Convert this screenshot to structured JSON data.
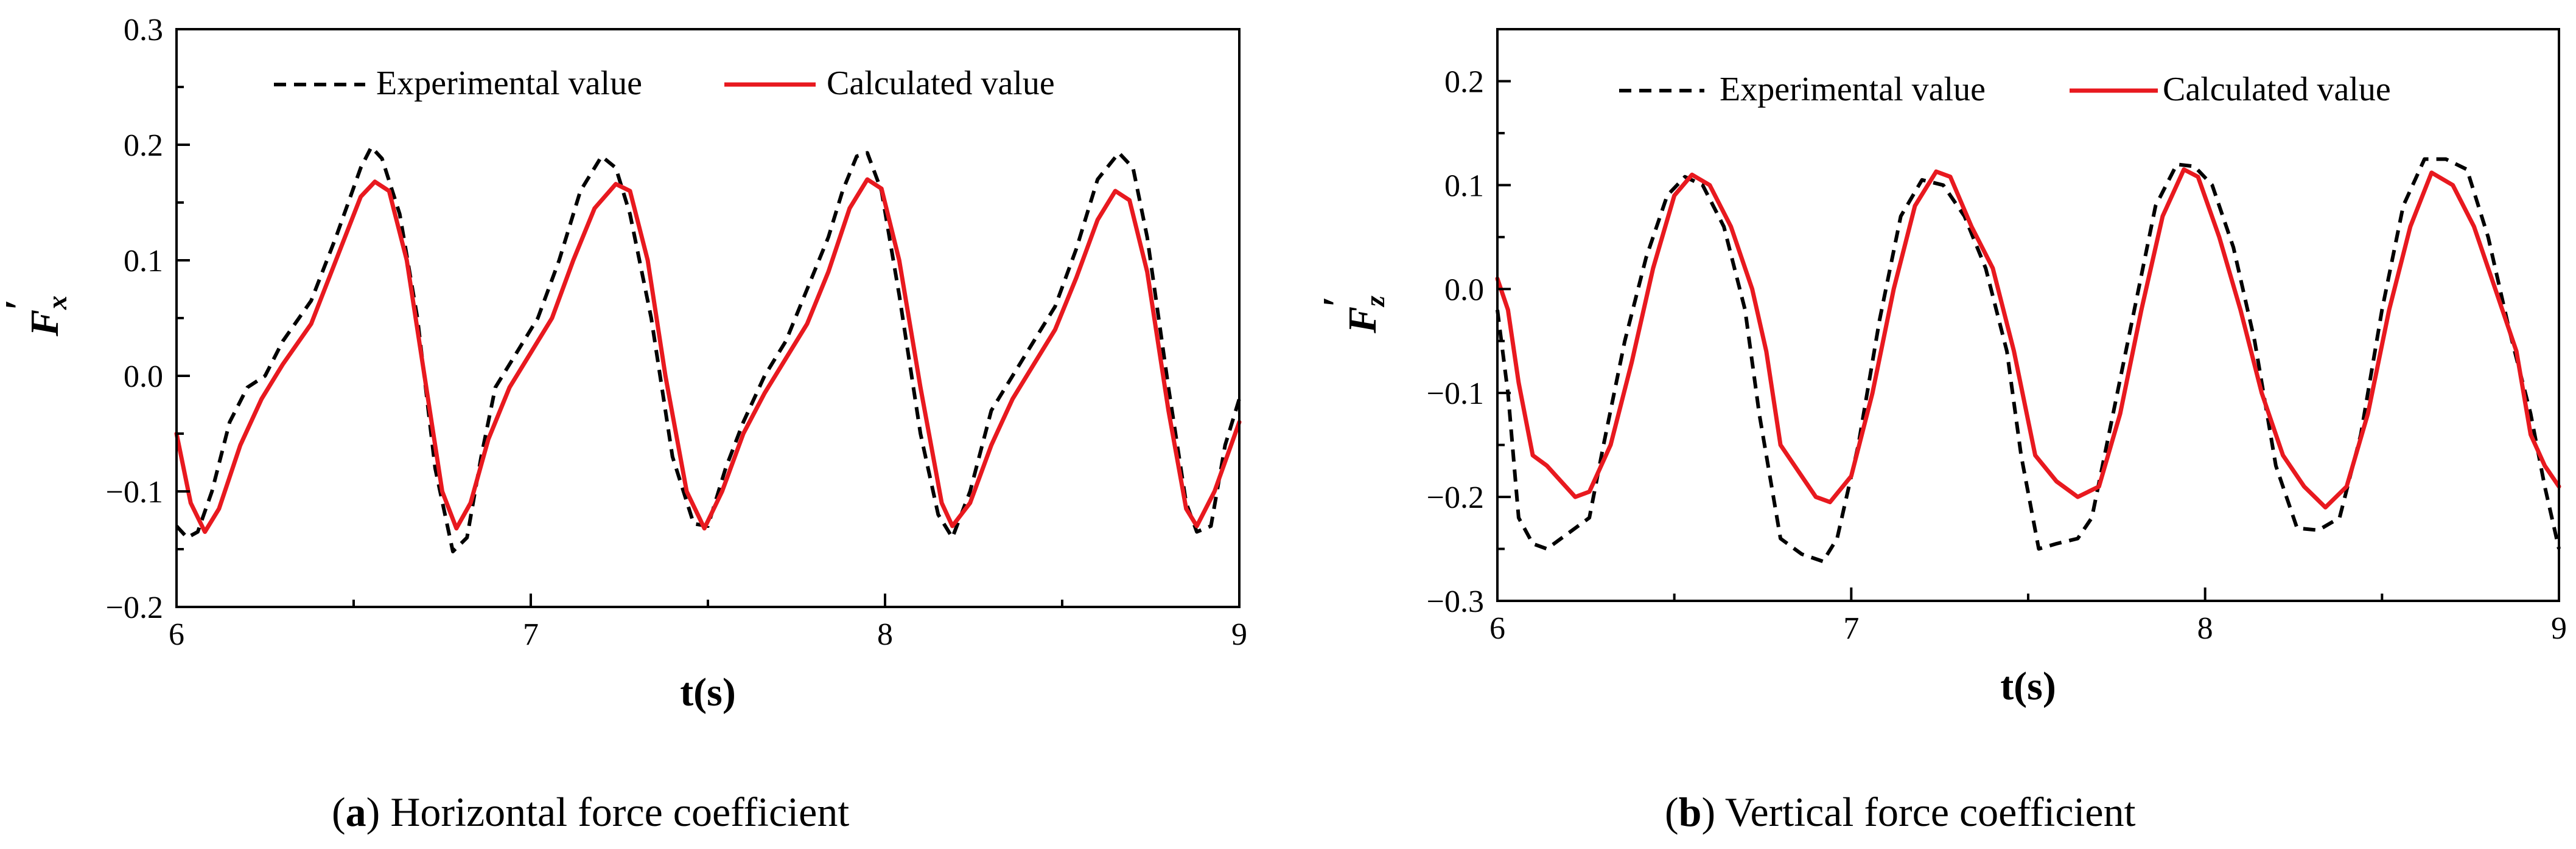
{
  "chart_data": [
    {
      "type": "line",
      "panel": "a",
      "caption_letter": "a",
      "caption_text": "Horizontal force coefficient",
      "xlabel": "t(s)",
      "ylabel_main": "F",
      "ylabel_prime": "′",
      "ylabel_sub": "x",
      "xlim": [
        6,
        9
      ],
      "ylim": [
        -0.2,
        0.3
      ],
      "xticks": [
        6,
        7,
        8,
        9
      ],
      "xtick_labels": [
        "6",
        "7",
        "8",
        "9"
      ],
      "yticks": [
        -0.2,
        -0.1,
        0.0,
        0.1,
        0.2,
        0.3
      ],
      "ytick_labels": [
        "−0.2",
        "−0.1",
        "0.0",
        "0.1",
        "0.2",
        "0.3"
      ],
      "legend_position": "top-center",
      "series": [
        {
          "name": "Experimental value",
          "style": "dashed",
          "color": "#000000",
          "points": [
            [
              6.0,
              -0.13
            ],
            [
              6.03,
              -0.14
            ],
            [
              6.06,
              -0.135
            ],
            [
              6.1,
              -0.1
            ],
            [
              6.15,
              -0.04
            ],
            [
              6.2,
              -0.01
            ],
            [
              6.25,
              0.0
            ],
            [
              6.3,
              0.03
            ],
            [
              6.38,
              0.065
            ],
            [
              6.45,
              0.12
            ],
            [
              6.52,
              0.18
            ],
            [
              6.55,
              0.198
            ],
            [
              6.58,
              0.188
            ],
            [
              6.63,
              0.14
            ],
            [
              6.68,
              0.05
            ],
            [
              6.73,
              -0.08
            ],
            [
              6.78,
              -0.152
            ],
            [
              6.82,
              -0.14
            ],
            [
              6.86,
              -0.07
            ],
            [
              6.9,
              -0.01
            ],
            [
              6.96,
              0.02
            ],
            [
              7.02,
              0.05
            ],
            [
              7.08,
              0.1
            ],
            [
              7.14,
              0.16
            ],
            [
              7.2,
              0.19
            ],
            [
              7.24,
              0.18
            ],
            [
              7.28,
              0.14
            ],
            [
              7.34,
              0.05
            ],
            [
              7.4,
              -0.07
            ],
            [
              7.46,
              -0.128
            ],
            [
              7.5,
              -0.13
            ],
            [
              7.55,
              -0.08
            ],
            [
              7.6,
              -0.04
            ],
            [
              7.66,
              0.0
            ],
            [
              7.72,
              0.03
            ],
            [
              7.78,
              0.075
            ],
            [
              7.84,
              0.12
            ],
            [
              7.88,
              0.16
            ],
            [
              7.92,
              0.19
            ],
            [
              7.95,
              0.193
            ],
            [
              7.99,
              0.16
            ],
            [
              8.04,
              0.07
            ],
            [
              8.1,
              -0.05
            ],
            [
              8.15,
              -0.12
            ],
            [
              8.19,
              -0.14
            ],
            [
              8.24,
              -0.1
            ],
            [
              8.3,
              -0.03
            ],
            [
              8.36,
              0.0
            ],
            [
              8.42,
              0.03
            ],
            [
              8.48,
              0.06
            ],
            [
              8.54,
              0.11
            ],
            [
              8.6,
              0.17
            ],
            [
              8.66,
              0.193
            ],
            [
              8.7,
              0.18
            ],
            [
              8.74,
              0.12
            ],
            [
              8.8,
              -0.01
            ],
            [
              8.85,
              -0.11
            ],
            [
              8.88,
              -0.135
            ],
            [
              8.92,
              -0.13
            ],
            [
              8.96,
              -0.06
            ],
            [
              9.0,
              -0.02
            ]
          ]
        },
        {
          "name": "Calculated value",
          "style": "solid",
          "color": "#e8191f",
          "points": [
            [
              6.0,
              -0.05
            ],
            [
              6.04,
              -0.11
            ],
            [
              6.08,
              -0.135
            ],
            [
              6.12,
              -0.115
            ],
            [
              6.18,
              -0.06
            ],
            [
              6.24,
              -0.02
            ],
            [
              6.3,
              0.01
            ],
            [
              6.38,
              0.045
            ],
            [
              6.45,
              0.1
            ],
            [
              6.52,
              0.155
            ],
            [
              6.56,
              0.168
            ],
            [
              6.6,
              0.16
            ],
            [
              6.65,
              0.1
            ],
            [
              6.7,
              0.0
            ],
            [
              6.75,
              -0.1
            ],
            [
              6.79,
              -0.132
            ],
            [
              6.83,
              -0.11
            ],
            [
              6.88,
              -0.055
            ],
            [
              6.94,
              -0.01
            ],
            [
              7.0,
              0.02
            ],
            [
              7.06,
              0.05
            ],
            [
              7.12,
              0.1
            ],
            [
              7.18,
              0.145
            ],
            [
              7.24,
              0.166
            ],
            [
              7.28,
              0.16
            ],
            [
              7.33,
              0.1
            ],
            [
              7.38,
              0.0
            ],
            [
              7.44,
              -0.1
            ],
            [
              7.49,
              -0.132
            ],
            [
              7.54,
              -0.1
            ],
            [
              7.6,
              -0.05
            ],
            [
              7.66,
              -0.015
            ],
            [
              7.72,
              0.015
            ],
            [
              7.78,
              0.045
            ],
            [
              7.84,
              0.09
            ],
            [
              7.9,
              0.145
            ],
            [
              7.95,
              0.17
            ],
            [
              7.99,
              0.162
            ],
            [
              8.04,
              0.1
            ],
            [
              8.1,
              -0.01
            ],
            [
              8.16,
              -0.11
            ],
            [
              8.19,
              -0.13
            ],
            [
              8.24,
              -0.11
            ],
            [
              8.3,
              -0.06
            ],
            [
              8.36,
              -0.02
            ],
            [
              8.42,
              0.01
            ],
            [
              8.48,
              0.04
            ],
            [
              8.54,
              0.085
            ],
            [
              8.6,
              0.135
            ],
            [
              8.65,
              0.16
            ],
            [
              8.69,
              0.152
            ],
            [
              8.74,
              0.09
            ],
            [
              8.8,
              -0.03
            ],
            [
              8.85,
              -0.115
            ],
            [
              8.88,
              -0.13
            ],
            [
              8.93,
              -0.1
            ],
            [
              9.0,
              -0.04
            ]
          ]
        }
      ]
    },
    {
      "type": "line",
      "panel": "b",
      "caption_letter": "b",
      "caption_text": "Vertical force coefficient",
      "xlabel": "t(s)",
      "ylabel_main": "F",
      "ylabel_prime": "′",
      "ylabel_sub": "z",
      "xlim": [
        6,
        9
      ],
      "ylim": [
        -0.3,
        0.25
      ],
      "xticks": [
        6,
        7,
        8,
        9
      ],
      "xtick_labels": [
        "6",
        "7",
        "8",
        "9"
      ],
      "yticks": [
        -0.3,
        -0.2,
        -0.1,
        0.0,
        0.1,
        0.2
      ],
      "ytick_labels": [
        "−0.3",
        "−0.2",
        "−0.1",
        "0.0",
        "0.1",
        "0.2"
      ],
      "legend_position": "top-center",
      "series": [
        {
          "name": "Experimental value",
          "style": "dashed",
          "color": "#000000",
          "points": [
            [
              6.0,
              -0.02
            ],
            [
              6.03,
              -0.1
            ],
            [
              6.06,
              -0.22
            ],
            [
              6.1,
              -0.245
            ],
            [
              6.14,
              -0.25
            ],
            [
              6.2,
              -0.235
            ],
            [
              6.26,
              -0.22
            ],
            [
              6.3,
              -0.15
            ],
            [
              6.36,
              -0.05
            ],
            [
              6.42,
              0.03
            ],
            [
              6.48,
              0.09
            ],
            [
              6.53,
              0.108
            ],
            [
              6.58,
              0.1
            ],
            [
              6.64,
              0.06
            ],
            [
              6.7,
              -0.02
            ],
            [
              6.74,
              -0.12
            ],
            [
              6.8,
              -0.24
            ],
            [
              6.86,
              -0.255
            ],
            [
              6.92,
              -0.262
            ],
            [
              6.96,
              -0.24
            ],
            [
              7.02,
              -0.15
            ],
            [
              7.08,
              -0.03
            ],
            [
              7.14,
              0.07
            ],
            [
              7.2,
              0.105
            ],
            [
              7.26,
              0.1
            ],
            [
              7.32,
              0.07
            ],
            [
              7.38,
              0.02
            ],
            [
              7.44,
              -0.06
            ],
            [
              7.48,
              -0.16
            ],
            [
              7.53,
              -0.25
            ],
            [
              7.58,
              -0.245
            ],
            [
              7.64,
              -0.24
            ],
            [
              7.68,
              -0.22
            ],
            [
              7.74,
              -0.12
            ],
            [
              7.8,
              -0.02
            ],
            [
              7.86,
              0.08
            ],
            [
              7.92,
              0.12
            ],
            [
              7.97,
              0.118
            ],
            [
              8.02,
              0.1
            ],
            [
              8.08,
              0.04
            ],
            [
              8.14,
              -0.05
            ],
            [
              8.2,
              -0.17
            ],
            [
              8.26,
              -0.23
            ],
            [
              8.32,
              -0.232
            ],
            [
              8.38,
              -0.22
            ],
            [
              8.44,
              -0.14
            ],
            [
              8.5,
              -0.02
            ],
            [
              8.56,
              0.08
            ],
            [
              8.62,
              0.125
            ],
            [
              8.68,
              0.125
            ],
            [
              8.74,
              0.115
            ],
            [
              8.8,
              0.05
            ],
            [
              8.86,
              -0.04
            ],
            [
              8.92,
              -0.12
            ],
            [
              8.96,
              -0.19
            ],
            [
              9.0,
              -0.25
            ]
          ]
        },
        {
          "name": "Calculated value",
          "style": "solid",
          "color": "#e8191f",
          "points": [
            [
              6.0,
              0.01
            ],
            [
              6.03,
              -0.02
            ],
            [
              6.06,
              -0.09
            ],
            [
              6.1,
              -0.16
            ],
            [
              6.14,
              -0.17
            ],
            [
              6.18,
              -0.185
            ],
            [
              6.22,
              -0.2
            ],
            [
              6.26,
              -0.195
            ],
            [
              6.32,
              -0.15
            ],
            [
              6.38,
              -0.07
            ],
            [
              6.44,
              0.02
            ],
            [
              6.5,
              0.09
            ],
            [
              6.55,
              0.11
            ],
            [
              6.6,
              0.1
            ],
            [
              6.66,
              0.06
            ],
            [
              6.72,
              0.0
            ],
            [
              6.76,
              -0.06
            ],
            [
              6.8,
              -0.15
            ],
            [
              6.86,
              -0.18
            ],
            [
              6.9,
              -0.2
            ],
            [
              6.94,
              -0.205
            ],
            [
              7.0,
              -0.18
            ],
            [
              7.06,
              -0.1
            ],
            [
              7.12,
              0.0
            ],
            [
              7.18,
              0.08
            ],
            [
              7.24,
              0.113
            ],
            [
              7.28,
              0.108
            ],
            [
              7.34,
              0.06
            ],
            [
              7.4,
              0.02
            ],
            [
              7.46,
              -0.06
            ],
            [
              7.52,
              -0.16
            ],
            [
              7.58,
              -0.185
            ],
            [
              7.64,
              -0.2
            ],
            [
              7.7,
              -0.19
            ],
            [
              7.76,
              -0.12
            ],
            [
              7.82,
              -0.02
            ],
            [
              7.88,
              0.07
            ],
            [
              7.94,
              0.115
            ],
            [
              7.98,
              0.108
            ],
            [
              8.04,
              0.05
            ],
            [
              8.1,
              -0.02
            ],
            [
              8.16,
              -0.1
            ],
            [
              8.22,
              -0.16
            ],
            [
              8.28,
              -0.19
            ],
            [
              8.34,
              -0.21
            ],
            [
              8.4,
              -0.19
            ],
            [
              8.46,
              -0.12
            ],
            [
              8.52,
              -0.02
            ],
            [
              8.58,
              0.06
            ],
            [
              8.64,
              0.112
            ],
            [
              8.7,
              0.1
            ],
            [
              8.76,
              0.06
            ],
            [
              8.82,
              0.0
            ],
            [
              8.88,
              -0.06
            ],
            [
              8.92,
              -0.14
            ],
            [
              8.96,
              -0.17
            ],
            [
              9.0,
              -0.19
            ]
          ]
        }
      ]
    }
  ]
}
